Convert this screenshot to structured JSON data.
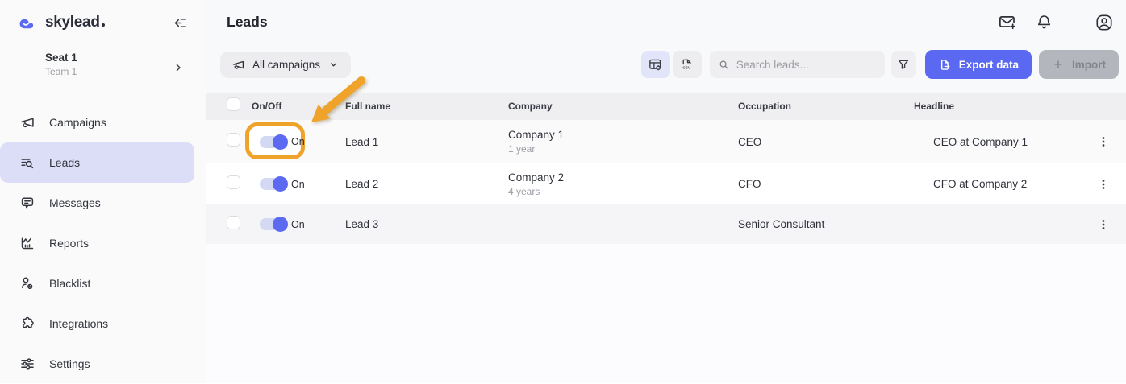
{
  "brand": {
    "name": "skylead"
  },
  "sidebar": {
    "seat": {
      "title": "Seat 1",
      "subtitle": "Team 1"
    },
    "items": [
      {
        "label": "Campaigns",
        "icon": "megaphone-icon",
        "active": false
      },
      {
        "label": "Leads",
        "icon": "leads-search-icon",
        "active": true
      },
      {
        "label": "Messages",
        "icon": "chat-bubble-icon",
        "active": false
      },
      {
        "label": "Reports",
        "icon": "chart-icon",
        "active": false
      },
      {
        "label": "Blacklist",
        "icon": "person-blocked-icon",
        "active": false
      },
      {
        "label": "Integrations",
        "icon": "puzzle-icon",
        "active": false
      },
      {
        "label": "Settings",
        "icon": "sliders-icon",
        "active": false
      }
    ]
  },
  "topbar": {
    "title": "Leads"
  },
  "toolbar": {
    "campaign_filter_label": "All campaigns",
    "csv_icon_label": "CSV",
    "search_placeholder": "Search leads...",
    "export_button_label": "Export data",
    "import_button_label": "Import"
  },
  "table": {
    "columns": {
      "on_off": "On/Off",
      "full_name": "Full name",
      "company": "Company",
      "occupation": "Occupation",
      "headline": "Headline"
    },
    "rows": [
      {
        "toggle_label": "On",
        "toggle_state": "on",
        "full_name": "Lead 1",
        "company": "Company 1",
        "company_tenure": "1 year",
        "occupation": "CEO",
        "headline": "CEO at Company 1"
      },
      {
        "toggle_label": "On",
        "toggle_state": "on",
        "full_name": "Lead 2",
        "company": "Company 2",
        "company_tenure": "4 years",
        "occupation": "CFO",
        "headline": "CFO at Company 2"
      },
      {
        "toggle_label": "On",
        "toggle_state": "on",
        "full_name": "Lead 3",
        "company": "",
        "company_tenure": "",
        "occupation": "Senior Consultant",
        "headline": ""
      }
    ]
  },
  "annotation": {
    "highlighted_element": "row-1 on/off toggle"
  },
  "colors": {
    "accent": "#5a68f2",
    "accent_light": "#dcdef7",
    "annotation_orange": "#f0a32b",
    "toggle_knob": "#5b6af0",
    "toggle_track": "#d3d8f3"
  }
}
